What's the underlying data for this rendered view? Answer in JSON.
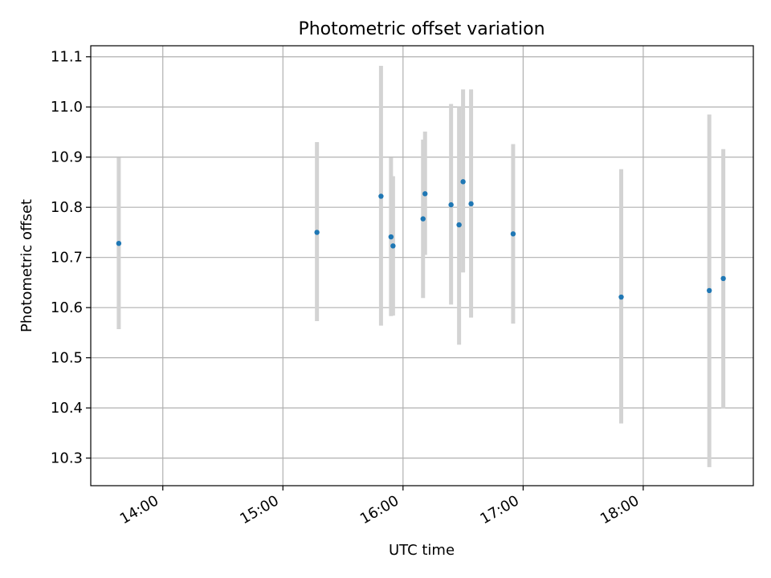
{
  "chart_data": {
    "type": "scatter",
    "title": "Photometric offset variation",
    "xlabel": "UTC time",
    "ylabel": "Photometric offset",
    "xlim": [
      "13:24",
      "18:55"
    ],
    "ylim": [
      10.245,
      11.122
    ],
    "grid": true,
    "x_ticks": [
      "14:00",
      "15:00",
      "16:00",
      "17:00",
      "18:00"
    ],
    "y_ticks": [
      10.3,
      10.4,
      10.5,
      10.6,
      10.7,
      10.8,
      10.9,
      11.0,
      11.1
    ],
    "y_tick_labels": [
      "10.3",
      "10.4",
      "10.5",
      "10.6",
      "10.7",
      "10.8",
      "10.9",
      "11.0",
      "11.1"
    ],
    "colors": {
      "points": "#1f77b4",
      "error_bars": "#d3d3d3",
      "grid": "#b0b0b0"
    },
    "points": [
      {
        "time": "13:38",
        "y": 10.728,
        "yerr_low": 10.557,
        "yerr_high": 10.899
      },
      {
        "time": "15:17",
        "y": 10.75,
        "yerr_low": 10.573,
        "yerr_high": 10.93
      },
      {
        "time": "15:49",
        "y": 10.822,
        "yerr_low": 10.564,
        "yerr_high": 11.082
      },
      {
        "time": "15:54",
        "y": 10.741,
        "yerr_low": 10.583,
        "yerr_high": 10.899
      },
      {
        "time": "15:55",
        "y": 10.723,
        "yerr_low": 10.584,
        "yerr_high": 10.862
      },
      {
        "time": "16:10",
        "y": 10.777,
        "yerr_low": 10.619,
        "yerr_high": 10.935
      },
      {
        "time": "16:11",
        "y": 10.827,
        "yerr_low": 10.705,
        "yerr_high": 10.951
      },
      {
        "time": "16:24",
        "y": 10.805,
        "yerr_low": 10.606,
        "yerr_high": 11.006
      },
      {
        "time": "16:28",
        "y": 10.765,
        "yerr_low": 10.526,
        "yerr_high": 11.0
      },
      {
        "time": "16:30",
        "y": 10.851,
        "yerr_low": 10.67,
        "yerr_high": 11.035
      },
      {
        "time": "16:34",
        "y": 10.807,
        "yerr_low": 10.58,
        "yerr_high": 11.035
      },
      {
        "time": "16:55",
        "y": 10.747,
        "yerr_low": 10.568,
        "yerr_high": 10.926
      },
      {
        "time": "17:49",
        "y": 10.621,
        "yerr_low": 10.369,
        "yerr_high": 10.876
      },
      {
        "time": "18:33",
        "y": 10.634,
        "yerr_low": 10.282,
        "yerr_high": 10.985
      },
      {
        "time": "18:40",
        "y": 10.658,
        "yerr_low": 10.399,
        "yerr_high": 10.916
      }
    ]
  }
}
